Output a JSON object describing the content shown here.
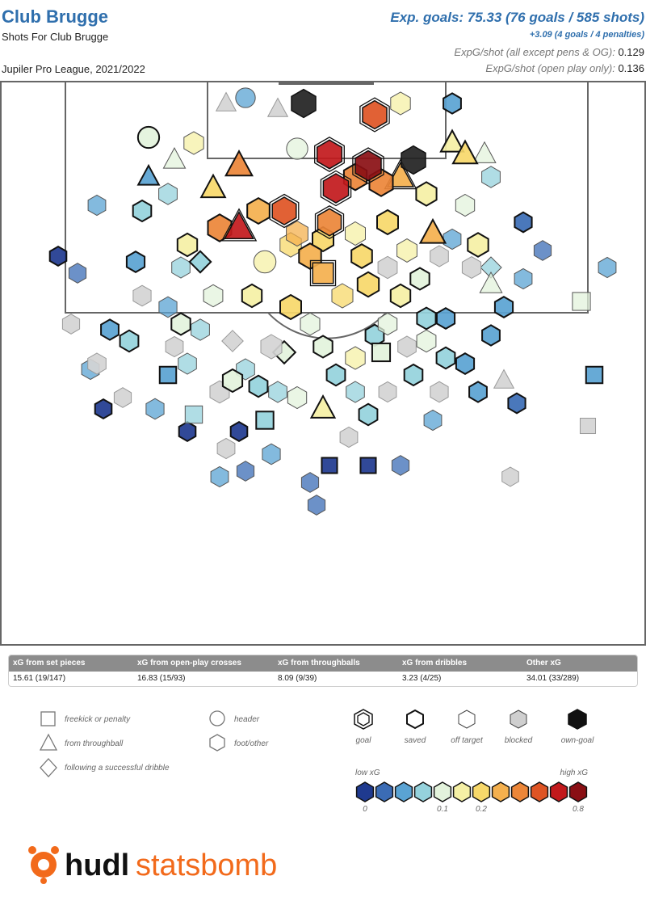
{
  "header": {
    "team": "Club Brugge",
    "subtitle": "Shots For Club Brugge",
    "competition": "Jupiler Pro League, 2021/2022",
    "xg_headline": "Exp. goals: 75.33 (76 goals / 585 shots)",
    "xg_pens": "+3.09 (4 goals / 4 penalties)",
    "xg_per_shot_label": "ExpG/shot (all except pens & OG):",
    "xg_per_shot_value": "0.129",
    "xg_per_shot_open_label": "ExpG/shot (open play only):",
    "xg_per_shot_open_value": "0.136"
  },
  "summary": [
    {
      "label": "xG from set pieces",
      "value": "15.61 (19/147)"
    },
    {
      "label": "xG from open-play crosses",
      "value": "16.83 (15/93)"
    },
    {
      "label": "xG from throughballs",
      "value": "8.09 (9/39)"
    },
    {
      "label": "xG from dribbles",
      "value": "3.23 (4/25)"
    },
    {
      "label": "Other xG",
      "value": "34.01 (33/289)"
    }
  ],
  "legend": {
    "shapes": [
      {
        "label": "freekick or penalty",
        "shape": "square"
      },
      {
        "label": "from throughball",
        "shape": "triangle"
      },
      {
        "label": "following a successful dribble",
        "shape": "diamond"
      },
      {
        "label": "header",
        "shape": "circle"
      },
      {
        "label": "foot/other",
        "shape": "hexagon"
      }
    ],
    "outcomes": [
      "goal",
      "saved",
      "off target",
      "blocked",
      "own-goal"
    ],
    "scale_low": "low xG",
    "scale_high": "high xG",
    "scale_ticks": [
      "0",
      "0.1",
      "0.2",
      "0.8"
    ],
    "scale_colors": [
      "#1f3a8f",
      "#3b6cb5",
      "#5aa3d3",
      "#95d2dc",
      "#e3f3dc",
      "#f5f0a5",
      "#f7d86a",
      "#f4b04e",
      "#ec8638",
      "#de5424",
      "#c2191c",
      "#8a0f14"
    ]
  },
  "logo": {
    "part1": "hudl",
    "part2": "statsbomb",
    "brand_color": "#f26a1b"
  },
  "chart_data": {
    "type": "scatter",
    "title": "Shots For Club Brugge",
    "x_range": [
      0,
      100
    ],
    "y_range": [
      0,
      100
    ],
    "shots": [
      {
        "x": 11,
        "y": 43,
        "xg": 0.02,
        "shape": "hexagon",
        "outcome": "blocked"
      },
      {
        "x": 17,
        "y": 44,
        "xg": 0.03,
        "shape": "hexagon",
        "outcome": "saved"
      },
      {
        "x": 15,
        "y": 50,
        "xg": 0.05,
        "shape": "hexagon",
        "outcome": "blocked"
      },
      {
        "x": 14,
        "y": 51,
        "xg": 0.03,
        "shape": "hexagon",
        "outcome": "off target"
      },
      {
        "x": 20,
        "y": 46,
        "xg": 0.06,
        "shape": "hexagon",
        "outcome": "saved"
      },
      {
        "x": 19,
        "y": 56,
        "xg": 0.02,
        "shape": "hexagon",
        "outcome": "blocked"
      },
      {
        "x": 26,
        "y": 52,
        "xg": 0.04,
        "shape": "square",
        "outcome": "saved"
      },
      {
        "x": 28,
        "y": 43,
        "xg": 0.08,
        "shape": "hexagon",
        "outcome": "saved"
      },
      {
        "x": 33,
        "y": 38,
        "xg": 0.09,
        "shape": "hexagon",
        "outcome": "off target"
      },
      {
        "x": 31,
        "y": 44,
        "xg": 0.06,
        "shape": "hexagon",
        "outcome": "off target"
      },
      {
        "x": 24,
        "y": 58,
        "xg": 0.04,
        "shape": "hexagon",
        "outcome": "off target"
      },
      {
        "x": 30,
        "y": 59,
        "xg": 0.07,
        "shape": "square",
        "outcome": "off target"
      },
      {
        "x": 34,
        "y": 55,
        "xg": 0.1,
        "shape": "hexagon",
        "outcome": "blocked"
      },
      {
        "x": 36,
        "y": 53,
        "xg": 0.11,
        "shape": "hexagon",
        "outcome": "saved"
      },
      {
        "x": 38,
        "y": 51,
        "xg": 0.05,
        "shape": "hexagon",
        "outcome": "off target"
      },
      {
        "x": 39,
        "y": 38,
        "xg": 0.12,
        "shape": "hexagon",
        "outcome": "saved"
      },
      {
        "x": 41,
        "y": 32,
        "xg": 0.15,
        "shape": "circle",
        "outcome": "off target"
      },
      {
        "x": 45,
        "y": 40,
        "xg": 0.2,
        "shape": "hexagon",
        "outcome": "saved"
      },
      {
        "x": 44,
        "y": 23,
        "xg": 0.45,
        "shape": "hexagon",
        "outcome": "goal"
      },
      {
        "x": 40,
        "y": 23,
        "xg": 0.3,
        "shape": "hexagon",
        "outcome": "saved"
      },
      {
        "x": 46,
        "y": 27,
        "xg": 0.25,
        "shape": "hexagon",
        "outcome": "off target"
      },
      {
        "x": 46,
        "y": 12,
        "xg": 0.1,
        "shape": "circle",
        "outcome": "off target"
      },
      {
        "x": 51,
        "y": 13,
        "xg": 0.55,
        "shape": "hexagon",
        "outcome": "goal"
      },
      {
        "x": 52,
        "y": 19,
        "xg": 0.6,
        "shape": "hexagon",
        "outcome": "goal"
      },
      {
        "x": 55,
        "y": 17,
        "xg": 0.35,
        "shape": "hexagon",
        "outcome": "saved"
      },
      {
        "x": 57,
        "y": 15,
        "xg": 0.7,
        "shape": "hexagon",
        "outcome": "goal"
      },
      {
        "x": 58,
        "y": 6,
        "xg": 0.5,
        "shape": "hexagon",
        "outcome": "goal"
      },
      {
        "x": 47,
        "y": 4,
        "xg": 0.5,
        "shape": "hexagon",
        "outcome": "own-goal"
      },
      {
        "x": 64,
        "y": 14,
        "xg": 0.5,
        "shape": "hexagon",
        "outcome": "own-goal"
      },
      {
        "x": 59,
        "y": 18,
        "xg": 0.4,
        "shape": "hexagon",
        "outcome": "saved"
      },
      {
        "x": 62,
        "y": 17,
        "xg": 0.3,
        "shape": "triangle",
        "outcome": "goal"
      },
      {
        "x": 50,
        "y": 28,
        "xg": 0.2,
        "shape": "hexagon",
        "outcome": "saved"
      },
      {
        "x": 55,
        "y": 27,
        "xg": 0.15,
        "shape": "hexagon",
        "outcome": "off target"
      },
      {
        "x": 60,
        "y": 25,
        "xg": 0.2,
        "shape": "hexagon",
        "outcome": "saved"
      },
      {
        "x": 63,
        "y": 30,
        "xg": 0.14,
        "shape": "hexagon",
        "outcome": "off target"
      },
      {
        "x": 66,
        "y": 20,
        "xg": 0.16,
        "shape": "hexagon",
        "outcome": "saved"
      },
      {
        "x": 70,
        "y": 11,
        "xg": 0.12,
        "shape": "triangle",
        "outcome": "saved"
      },
      {
        "x": 72,
        "y": 13,
        "xg": 0.2,
        "shape": "triangle",
        "outcome": "saved"
      },
      {
        "x": 75,
        "y": 13,
        "xg": 0.1,
        "shape": "triangle",
        "outcome": "off target"
      },
      {
        "x": 67,
        "y": 27,
        "xg": 0.25,
        "shape": "triangle",
        "outcome": "saved"
      },
      {
        "x": 72,
        "y": 22,
        "xg": 0.08,
        "shape": "hexagon",
        "outcome": "off target"
      },
      {
        "x": 76,
        "y": 17,
        "xg": 0.06,
        "shape": "hexagon",
        "outcome": "off target"
      },
      {
        "x": 74,
        "y": 29,
        "xg": 0.17,
        "shape": "hexagon",
        "outcome": "saved"
      },
      {
        "x": 73,
        "y": 33,
        "xg": 0.07,
        "shape": "hexagon",
        "outcome": "blocked"
      },
      {
        "x": 76,
        "y": 33,
        "xg": 0.05,
        "shape": "diamond",
        "outcome": "off target"
      },
      {
        "x": 76,
        "y": 36,
        "xg": 0.09,
        "shape": "triangle",
        "outcome": "off target"
      },
      {
        "x": 78,
        "y": 40,
        "xg": 0.04,
        "shape": "hexagon",
        "outcome": "saved"
      },
      {
        "x": 81,
        "y": 35,
        "xg": 0.03,
        "shape": "hexagon",
        "outcome": "off target"
      },
      {
        "x": 81,
        "y": 25,
        "xg": 0.02,
        "shape": "hexagon",
        "outcome": "saved"
      },
      {
        "x": 84,
        "y": 30,
        "xg": 0.02,
        "shape": "hexagon",
        "outcome": "off target"
      },
      {
        "x": 76,
        "y": 45,
        "xg": 0.03,
        "shape": "hexagon",
        "outcome": "saved"
      },
      {
        "x": 72,
        "y": 50,
        "xg": 0.04,
        "shape": "hexagon",
        "outcome": "saved"
      },
      {
        "x": 69,
        "y": 49,
        "xg": 0.06,
        "shape": "hexagon",
        "outcome": "saved"
      },
      {
        "x": 66,
        "y": 46,
        "xg": 0.09,
        "shape": "hexagon",
        "outcome": "off target"
      },
      {
        "x": 64,
        "y": 52,
        "xg": 0.05,
        "shape": "hexagon",
        "outcome": "saved"
      },
      {
        "x": 68,
        "y": 55,
        "xg": 0.04,
        "shape": "hexagon",
        "outcome": "blocked"
      },
      {
        "x": 74,
        "y": 55,
        "xg": 0.03,
        "shape": "hexagon",
        "outcome": "saved"
      },
      {
        "x": 78,
        "y": 53,
        "xg": 0.02,
        "shape": "triangle",
        "outcome": "blocked"
      },
      {
        "x": 80,
        "y": 57,
        "xg": 0.02,
        "shape": "hexagon",
        "outcome": "saved"
      },
      {
        "x": 92,
        "y": 52,
        "xg": 0.04,
        "shape": "square",
        "outcome": "saved"
      },
      {
        "x": 90,
        "y": 39,
        "xg": 0.1,
        "shape": "square",
        "outcome": "off target"
      },
      {
        "x": 94,
        "y": 33,
        "xg": 0.03,
        "shape": "hexagon",
        "outcome": "off target"
      },
      {
        "x": 91,
        "y": 61,
        "xg": 0.01,
        "shape": "square",
        "outcome": "blocked"
      },
      {
        "x": 57,
        "y": 59,
        "xg": 0.06,
        "shape": "hexagon",
        "outcome": "saved"
      },
      {
        "x": 54,
        "y": 63,
        "xg": 0.03,
        "shape": "hexagon",
        "outcome": "blocked"
      },
      {
        "x": 50,
        "y": 58,
        "xg": 0.15,
        "shape": "triangle",
        "outcome": "saved"
      },
      {
        "x": 46,
        "y": 56,
        "xg": 0.08,
        "shape": "hexagon",
        "outcome": "off target"
      },
      {
        "x": 41,
        "y": 60,
        "xg": 0.07,
        "shape": "square",
        "outcome": "saved"
      },
      {
        "x": 37,
        "y": 62,
        "xg": 0.01,
        "shape": "hexagon",
        "outcome": "saved"
      },
      {
        "x": 42,
        "y": 66,
        "xg": 0.04,
        "shape": "hexagon",
        "outcome": "off target"
      },
      {
        "x": 38,
        "y": 69,
        "xg": 0.02,
        "shape": "hexagon",
        "outcome": "off target"
      },
      {
        "x": 29,
        "y": 62,
        "xg": 0.01,
        "shape": "hexagon",
        "outcome": "saved"
      },
      {
        "x": 35,
        "y": 65,
        "xg": 0.03,
        "shape": "hexagon",
        "outcome": "blocked"
      },
      {
        "x": 51,
        "y": 68,
        "xg": 0.01,
        "shape": "square",
        "outcome": "saved"
      },
      {
        "x": 57,
        "y": 68,
        "xg": 0.01,
        "shape": "square",
        "outcome": "saved"
      },
      {
        "x": 34,
        "y": 70,
        "xg": 0.03,
        "shape": "hexagon",
        "outcome": "off target"
      },
      {
        "x": 48,
        "y": 71,
        "xg": 0.02,
        "shape": "hexagon",
        "outcome": "off target"
      },
      {
        "x": 62,
        "y": 68,
        "xg": 0.02,
        "shape": "hexagon",
        "outcome": "off target"
      },
      {
        "x": 79,
        "y": 70,
        "xg": 0.01,
        "shape": "hexagon",
        "outcome": "blocked"
      },
      {
        "x": 49,
        "y": 75,
        "xg": 0.02,
        "shape": "hexagon",
        "outcome": "off target"
      },
      {
        "x": 16,
        "y": 58,
        "xg": 0.01,
        "shape": "hexagon",
        "outcome": "saved"
      },
      {
        "x": 12,
        "y": 34,
        "xg": 0.02,
        "shape": "hexagon",
        "outcome": "off target"
      },
      {
        "x": 9,
        "y": 31,
        "xg": 0.01,
        "shape": "hexagon",
        "outcome": "saved"
      },
      {
        "x": 15,
        "y": 22,
        "xg": 0.03,
        "shape": "hexagon",
        "outcome": "off target"
      },
      {
        "x": 23,
        "y": 10,
        "xg": 0.1,
        "shape": "circle",
        "outcome": "saved"
      },
      {
        "x": 27,
        "y": 14,
        "xg": 0.08,
        "shape": "triangle",
        "outcome": "off target"
      },
      {
        "x": 30,
        "y": 11,
        "xg": 0.12,
        "shape": "hexagon",
        "outcome": "off target"
      },
      {
        "x": 33,
        "y": 19,
        "xg": 0.18,
        "shape": "triangle",
        "outcome": "saved"
      },
      {
        "x": 37,
        "y": 15,
        "xg": 0.35,
        "shape": "triangle",
        "outcome": "saved"
      },
      {
        "x": 37,
        "y": 26,
        "xg": 0.55,
        "shape": "triangle",
        "outcome": "goal"
      },
      {
        "x": 34,
        "y": 26,
        "xg": 0.4,
        "shape": "hexagon",
        "outcome": "saved"
      },
      {
        "x": 22,
        "y": 23,
        "xg": 0.05,
        "shape": "hexagon",
        "outcome": "saved"
      },
      {
        "x": 23,
        "y": 17,
        "xg": 0.04,
        "shape": "triangle",
        "outcome": "saved"
      },
      {
        "x": 26,
        "y": 20,
        "xg": 0.06,
        "shape": "hexagon",
        "outcome": "off target"
      },
      {
        "x": 31,
        "y": 32,
        "xg": 0.06,
        "shape": "diamond",
        "outcome": "saved"
      },
      {
        "x": 29,
        "y": 29,
        "xg": 0.12,
        "shape": "hexagon",
        "outcome": "saved"
      },
      {
        "x": 28,
        "y": 33,
        "xg": 0.05,
        "shape": "hexagon",
        "outcome": "off target"
      },
      {
        "x": 21,
        "y": 32,
        "xg": 0.04,
        "shape": "hexagon",
        "outcome": "saved"
      },
      {
        "x": 36,
        "y": 46,
        "xg": 0.06,
        "shape": "diamond",
        "outcome": "blocked"
      },
      {
        "x": 42,
        "y": 47,
        "xg": 0.2,
        "shape": "hexagon",
        "outcome": "blocked"
      },
      {
        "x": 44,
        "y": 48,
        "xg": 0.1,
        "shape": "diamond",
        "outcome": "saved"
      },
      {
        "x": 55,
        "y": 49,
        "xg": 0.12,
        "shape": "hexagon",
        "outcome": "off target"
      },
      {
        "x": 59,
        "y": 48,
        "xg": 0.1,
        "shape": "square",
        "outcome": "saved"
      },
      {
        "x": 53,
        "y": 38,
        "xg": 0.2,
        "shape": "hexagon",
        "outcome": "off target"
      },
      {
        "x": 57,
        "y": 36,
        "xg": 0.22,
        "shape": "hexagon",
        "outcome": "saved"
      },
      {
        "x": 62,
        "y": 38,
        "xg": 0.12,
        "shape": "hexagon",
        "outcome": "saved"
      },
      {
        "x": 50,
        "y": 34,
        "xg": 0.3,
        "shape": "square",
        "outcome": "goal"
      },
      {
        "x": 45,
        "y": 29,
        "xg": 0.22,
        "shape": "hexagon",
        "outcome": "off target"
      },
      {
        "x": 48,
        "y": 31,
        "xg": 0.28,
        "shape": "hexagon",
        "outcome": "saved"
      },
      {
        "x": 51,
        "y": 25,
        "xg": 0.4,
        "shape": "hexagon",
        "outcome": "goal"
      },
      {
        "x": 56,
        "y": 31,
        "xg": 0.18,
        "shape": "hexagon",
        "outcome": "saved"
      },
      {
        "x": 60,
        "y": 33,
        "xg": 0.09,
        "shape": "hexagon",
        "outcome": "blocked"
      },
      {
        "x": 65,
        "y": 35,
        "xg": 0.08,
        "shape": "hexagon",
        "outcome": "saved"
      },
      {
        "x": 68,
        "y": 31,
        "xg": 0.05,
        "shape": "hexagon",
        "outcome": "blocked"
      },
      {
        "x": 70,
        "y": 28,
        "xg": 0.03,
        "shape": "hexagon",
        "outcome": "off target"
      },
      {
        "x": 69,
        "y": 42,
        "xg": 0.04,
        "shape": "hexagon",
        "outcome": "saved"
      },
      {
        "x": 66,
        "y": 42,
        "xg": 0.07,
        "shape": "hexagon",
        "outcome": "saved"
      },
      {
        "x": 60,
        "y": 43,
        "xg": 0.08,
        "shape": "hexagon",
        "outcome": "off target"
      },
      {
        "x": 58,
        "y": 45,
        "xg": 0.06,
        "shape": "hexagon",
        "outcome": "saved"
      },
      {
        "x": 63,
        "y": 47,
        "xg": 0.05,
        "shape": "hexagon",
        "outcome": "blocked"
      },
      {
        "x": 48,
        "y": 43,
        "xg": 0.1,
        "shape": "hexagon",
        "outcome": "off target"
      },
      {
        "x": 50,
        "y": 47,
        "xg": 0.08,
        "shape": "hexagon",
        "outcome": "saved"
      },
      {
        "x": 52,
        "y": 52,
        "xg": 0.06,
        "shape": "hexagon",
        "outcome": "saved"
      },
      {
        "x": 40,
        "y": 54,
        "xg": 0.06,
        "shape": "hexagon",
        "outcome": "saved"
      },
      {
        "x": 43,
        "y": 55,
        "xg": 0.05,
        "shape": "hexagon",
        "outcome": "off target"
      },
      {
        "x": 29,
        "y": 50,
        "xg": 0.05,
        "shape": "hexagon",
        "outcome": "off target"
      },
      {
        "x": 27,
        "y": 47,
        "xg": 0.03,
        "shape": "hexagon",
        "outcome": "blocked"
      },
      {
        "x": 22,
        "y": 38,
        "xg": 0.04,
        "shape": "hexagon",
        "outcome": "blocked"
      },
      {
        "x": 26,
        "y": 40,
        "xg": 0.04,
        "shape": "hexagon",
        "outcome": "off target"
      },
      {
        "x": 55,
        "y": 55,
        "xg": 0.05,
        "shape": "hexagon",
        "outcome": "off target"
      },
      {
        "x": 60,
        "y": 55,
        "xg": 0.03,
        "shape": "hexagon",
        "outcome": "blocked"
      },
      {
        "x": 67,
        "y": 60,
        "xg": 0.03,
        "shape": "hexagon",
        "outcome": "off target"
      },
      {
        "x": 43,
        "y": 5,
        "xg": 0.02,
        "shape": "triangle",
        "outcome": "blocked"
      },
      {
        "x": 35,
        "y": 4,
        "xg": 0.02,
        "shape": "triangle",
        "outcome": "blocked"
      },
      {
        "x": 38,
        "y": 3,
        "xg": 0.04,
        "shape": "circle",
        "outcome": "off target"
      },
      {
        "x": 62,
        "y": 4,
        "xg": 0.12,
        "shape": "hexagon",
        "outcome": "off target"
      },
      {
        "x": 70,
        "y": 4,
        "xg": 0.03,
        "shape": "hexagon",
        "outcome": "saved"
      }
    ]
  }
}
